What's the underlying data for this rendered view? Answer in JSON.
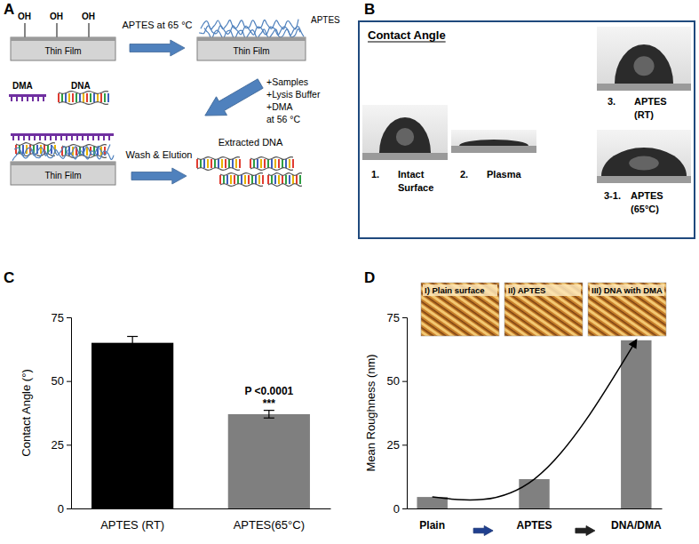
{
  "panel_a": {
    "title": "A",
    "hydroxyls": [
      "OH",
      "OH",
      "OH"
    ],
    "substrates": [
      "Thin Film",
      "Thin Film",
      "Thin Film"
    ],
    "coating": "APTES",
    "step_1": "APTES at 65 °C",
    "reagents": [
      "DMA",
      "DNA"
    ],
    "step_2": [
      "+Samples",
      "+Lysis Buffer",
      "+DMA",
      "at 56 °C"
    ],
    "step_3": "Wash & Elution",
    "product": "Extracted DNA"
  },
  "panel_b": {
    "title": "B",
    "heading": "Contact Angle",
    "photos": [
      {
        "number": "1.",
        "label": [
          "Intact",
          "Surface"
        ]
      },
      {
        "number": "2.",
        "label": [
          "Plasma"
        ]
      },
      {
        "number": "3.",
        "label": [
          "APTES",
          "(RT)"
        ]
      },
      {
        "number": "3-1.",
        "label": [
          "APTES",
          "(65°C)"
        ]
      }
    ]
  },
  "chart_data": [
    {
      "type": "bar",
      "title": "C",
      "y_label": "Contact Angle (°)",
      "categories": [
        "APTES (RT)",
        "APTES(65°C)"
      ],
      "values": [
        65,
        37
      ],
      "errors": [
        2.5,
        1.5
      ],
      "colors": [
        "#000000",
        "#7f7f7f"
      ],
      "ylim": [
        0,
        75
      ],
      "yticks": [
        0,
        25,
        50,
        75
      ],
      "annotations": [
        "P <0.0001",
        "***"
      ]
    },
    {
      "type": "bar",
      "title": "D",
      "y_label": "Mean Roughness (nm)",
      "categories": [
        "Plain",
        "APTES",
        "DNA/DMA"
      ],
      "series": [
        {
          "type": "bar",
          "color": "#808080",
          "values": [
            4.5,
            11.5,
            66
          ]
        },
        {
          "type": "line",
          "color": "#000000",
          "values": [
            4.5,
            11.5,
            66
          ]
        }
      ],
      "ylim": [
        0,
        75
      ],
      "yticks": [
        0,
        25,
        50,
        75
      ],
      "images": [
        "I) Plain surface",
        "II) APTES",
        "III) DNA with DMA"
      ]
    }
  ]
}
